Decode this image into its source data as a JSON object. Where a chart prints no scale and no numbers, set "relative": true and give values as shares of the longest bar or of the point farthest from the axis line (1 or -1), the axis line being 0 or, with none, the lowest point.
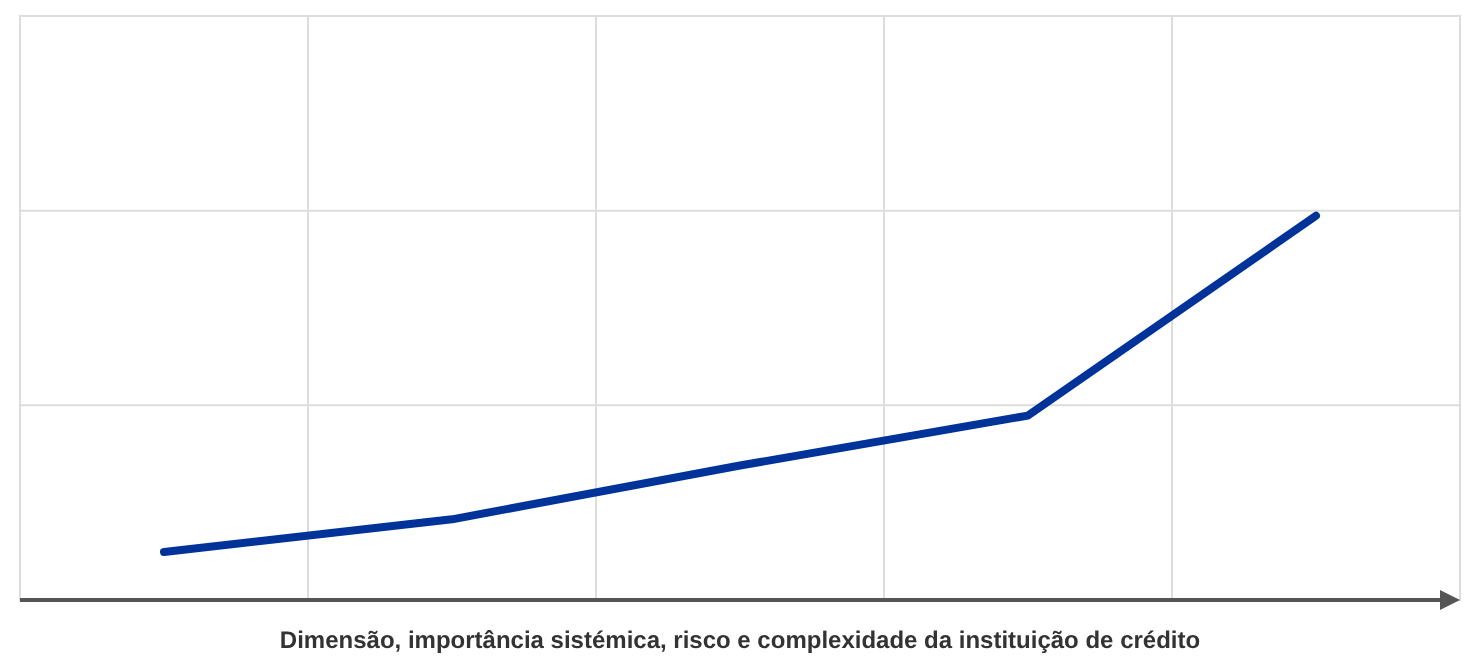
{
  "chart_data": {
    "type": "line",
    "xlabel": "Dimensão, importância sistémica, risco e complexidade da instituição de crédito",
    "categories": [
      null,
      null,
      null,
      null,
      null
    ],
    "relative": true,
    "series": [
      {
        "color": "#003399",
        "values": [
          0.125,
          0.21,
          0.35,
          0.48,
          1
        ]
      }
    ],
    "grid": true,
    "line_style": "solid"
  }
}
